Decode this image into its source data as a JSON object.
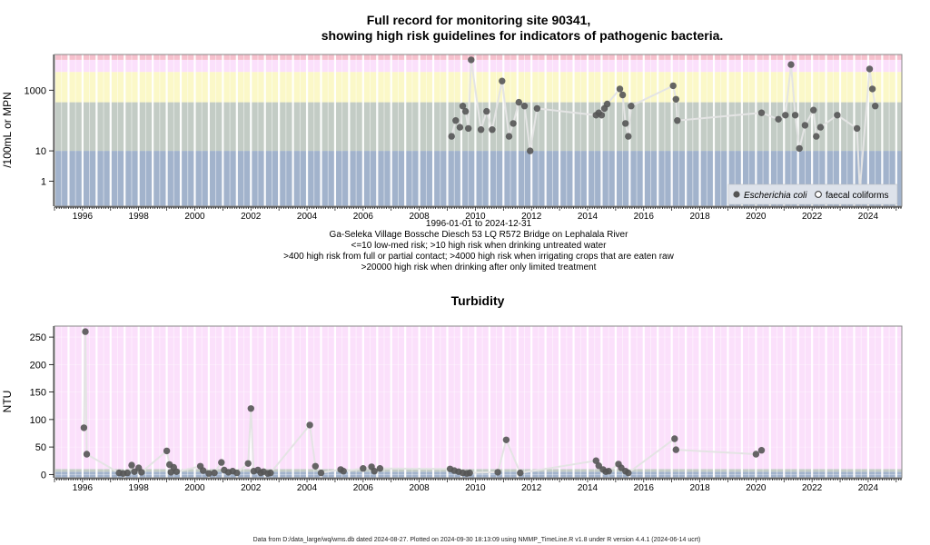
{
  "chart_data": [
    {
      "type": "scatter",
      "title_line1": "Full record for monitoring site 90341,",
      "title_line2": "showing high risk guidelines for indicators of pathogenic bacteria.",
      "ylabel": "/100mL or MPN",
      "y_scale": "log",
      "yticks": [
        {
          "value": 1,
          "label": "1"
        },
        {
          "value": 10,
          "label": "10"
        },
        {
          "value": 1000,
          "label": "1000"
        }
      ],
      "ylim": [
        0.15,
        15000
      ],
      "xlim": [
        1995.0,
        2025.2
      ],
      "xticks": [
        1996,
        1998,
        2000,
        2002,
        2004,
        2006,
        2008,
        2010,
        2012,
        2014,
        2016,
        2018,
        2020,
        2022,
        2024
      ],
      "bands": [
        {
          "from": 0.15,
          "to": 10,
          "color": "#a2b3cc"
        },
        {
          "from": 10,
          "to": 400,
          "color": "#c3ccc5"
        },
        {
          "from": 400,
          "to": 4000,
          "color": "#fbf8c8"
        },
        {
          "from": 4000,
          "to": 10000,
          "color": "#fbe0fb"
        },
        {
          "from": 10000,
          "to": 15000,
          "color": "#f6c0cd"
        }
      ],
      "subtitle_lines": [
        "1996-01-01 to 2024-12-31",
        "Ga-Seleka Village Bossche Diesch 53 LQ R572 Bridge on Lephalala River",
        "<=10 low-med risk; >10 high risk when drinking untreated water",
        ">400 high risk from full or partial contact; >4000 high risk when irrigating crops that are eaten raw",
        ">20000 high risk when drinking after only limited treatment"
      ],
      "legend": {
        "placement": "bottom-right",
        "ecoli": "Escherichia coli",
        "faecal": "faecal coliforms"
      },
      "series": [
        {
          "name": "Escherichia coli",
          "marker": "filled-circle",
          "points": [
            [
              2009.15,
              30
            ],
            [
              2009.3,
              100
            ],
            [
              2009.45,
              60
            ],
            [
              2009.55,
              300
            ],
            [
              2009.65,
              200
            ],
            [
              2009.75,
              55
            ],
            [
              2009.85,
              10000
            ],
            [
              2010.2,
              50
            ],
            [
              2010.4,
              200
            ],
            [
              2010.6,
              50
            ],
            [
              2010.95,
              2000
            ],
            [
              2011.2,
              30
            ],
            [
              2011.35,
              80
            ],
            [
              2011.55,
              400
            ],
            [
              2011.75,
              300
            ],
            [
              2011.95,
              10
            ],
            [
              2012.2,
              250
            ],
            [
              2014.3,
              150
            ],
            [
              2014.4,
              180
            ],
            [
              2014.5,
              150
            ],
            [
              2014.6,
              250
            ],
            [
              2014.7,
              350
            ],
            [
              2015.15,
              1100
            ],
            [
              2015.25,
              700
            ],
            [
              2015.35,
              80
            ],
            [
              2015.45,
              30
            ],
            [
              2015.55,
              300
            ],
            [
              2017.05,
              1400
            ],
            [
              2017.15,
              500
            ],
            [
              2017.2,
              100
            ],
            [
              2020.2,
              180
            ],
            [
              2020.8,
              110
            ],
            [
              2021.05,
              150
            ],
            [
              2021.25,
              7000
            ],
            [
              2021.4,
              150
            ],
            [
              2021.55,
              12
            ],
            [
              2021.75,
              70
            ],
            [
              2022.05,
              220
            ],
            [
              2022.15,
              30
            ],
            [
              2022.3,
              60
            ],
            [
              2022.9,
              150
            ],
            [
              2023.6,
              55
            ],
            [
              2023.7,
              0.5
            ],
            [
              2024.05,
              5000
            ],
            [
              2024.15,
              1100
            ],
            [
              2024.25,
              300
            ]
          ]
        }
      ]
    },
    {
      "type": "scatter",
      "title": "Turbidity",
      "ylabel": "NTU",
      "yticks": [
        0,
        50,
        100,
        150,
        200,
        250
      ],
      "ylim": [
        -6,
        270
      ],
      "xlim": [
        1995.0,
        2025.2
      ],
      "xticks": [
        1996,
        1998,
        2000,
        2002,
        2004,
        2006,
        2008,
        2010,
        2012,
        2014,
        2016,
        2018,
        2020,
        2022,
        2024
      ],
      "bands": [
        {
          "from": -6,
          "to": 0,
          "color": "#a2b3cc"
        },
        {
          "from": 0,
          "to": 5,
          "color": "#a2b3cc"
        },
        {
          "from": 5,
          "to": 10,
          "color": "#c3ccc5"
        },
        {
          "from": 10,
          "to": 270,
          "color": "#fbe0fb"
        }
      ],
      "series": [
        {
          "name": "Turbidity",
          "marker": "filled-circle",
          "points": [
            [
              1996.05,
              85
            ],
            [
              1996.1,
              260
            ],
            [
              1996.15,
              37
            ],
            [
              1997.3,
              3
            ],
            [
              1997.45,
              2
            ],
            [
              1997.6,
              3
            ],
            [
              1997.75,
              17
            ],
            [
              1997.85,
              5
            ],
            [
              1998.0,
              12
            ],
            [
              1998.1,
              4
            ],
            [
              1999.0,
              43
            ],
            [
              1999.1,
              18
            ],
            [
              1999.15,
              4
            ],
            [
              1999.25,
              13
            ],
            [
              1999.35,
              5
            ],
            [
              2000.2,
              15
            ],
            [
              2000.3,
              7
            ],
            [
              2000.5,
              2
            ],
            [
              2000.7,
              3
            ],
            [
              2000.95,
              22
            ],
            [
              2001.05,
              8
            ],
            [
              2001.2,
              4
            ],
            [
              2001.35,
              6
            ],
            [
              2001.5,
              3
            ],
            [
              2001.9,
              20
            ],
            [
              2002.0,
              120
            ],
            [
              2002.1,
              6
            ],
            [
              2002.25,
              8
            ],
            [
              2002.35,
              3
            ],
            [
              2002.45,
              5
            ],
            [
              2002.6,
              2
            ],
            [
              2002.7,
              3
            ],
            [
              2004.1,
              90
            ],
            [
              2004.3,
              15
            ],
            [
              2004.5,
              3
            ],
            [
              2005.2,
              9
            ],
            [
              2005.3,
              6
            ],
            [
              2006.0,
              11
            ],
            [
              2006.3,
              14
            ],
            [
              2006.4,
              6
            ],
            [
              2006.6,
              11
            ],
            [
              2009.1,
              10
            ],
            [
              2009.25,
              7
            ],
            [
              2009.4,
              5
            ],
            [
              2009.55,
              3
            ],
            [
              2009.7,
              2
            ],
            [
              2009.8,
              3
            ],
            [
              2010.8,
              4
            ],
            [
              2011.1,
              63
            ],
            [
              2011.6,
              3
            ],
            [
              2014.3,
              25
            ],
            [
              2014.4,
              16
            ],
            [
              2014.55,
              9
            ],
            [
              2014.65,
              5
            ],
            [
              2014.75,
              6
            ],
            [
              2015.1,
              19
            ],
            [
              2015.2,
              12
            ],
            [
              2015.35,
              6
            ],
            [
              2015.45,
              3
            ],
            [
              2017.1,
              65
            ],
            [
              2017.15,
              45
            ],
            [
              2020.0,
              37
            ],
            [
              2020.2,
              44
            ]
          ]
        }
      ]
    }
  ],
  "footer": "Data from D:/data_large/wq/wms.db dated 2024-08-27. Plotted on 2024-09-30 18:13:09 using NMMP_TimeLine.R v1.8 under R version 4.4.1 (2024-06-14 ucrt)"
}
